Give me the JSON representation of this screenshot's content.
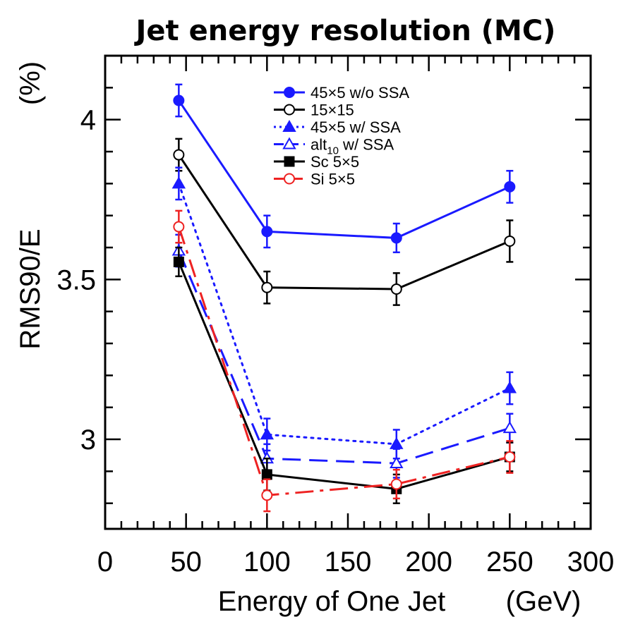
{
  "chart_data": {
    "type": "line",
    "title": "Jet energy resolution (MC)",
    "xlabel": "Energy of One Jet",
    "xunit": "(GeV)",
    "ylabel": "RMS90/E",
    "yunit": "(%)",
    "xlim": [
      0,
      300
    ],
    "ylim": [
      2.72,
      4.2
    ],
    "xticks": [
      0,
      50,
      100,
      150,
      200,
      250,
      300
    ],
    "yticks": [
      3,
      3.5,
      4
    ],
    "ytick_labels": [
      "3",
      "3.5",
      "4"
    ],
    "legend_position": "top-center",
    "grid": false,
    "series": [
      {
        "name": "45×5 w/o SSA",
        "color": "#1a1aff",
        "dash": "solid",
        "marker": "filled-circle",
        "x": [
          45.5,
          100,
          180,
          250
        ],
        "y": [
          4.06,
          3.65,
          3.63,
          3.79
        ],
        "err": [
          0.05,
          0.05,
          0.045,
          0.05
        ]
      },
      {
        "name": "15×15",
        "color": "#000000",
        "dash": "solid",
        "marker": "open-circle",
        "x": [
          45.5,
          100,
          180,
          250
        ],
        "y": [
          3.89,
          3.475,
          3.47,
          3.62
        ],
        "err": [
          0.05,
          0.05,
          0.05,
          0.065
        ]
      },
      {
        "name": "45×5 w/  SSA",
        "color": "#1a1aff",
        "dash": "dotted",
        "marker": "filled-triangle",
        "x": [
          45.5,
          100,
          180,
          250
        ],
        "y": [
          3.8,
          3.015,
          2.985,
          3.16
        ],
        "err": [
          0.05,
          0.05,
          0.045,
          0.05
        ]
      },
      {
        "name": "alt",
        "name_sub": "10",
        "name_suffix": " w/  SSA",
        "color": "#1a1aff",
        "dash": "dashed",
        "marker": "open-triangle",
        "x": [
          45.5,
          100,
          180,
          250
        ],
        "y": [
          3.59,
          2.94,
          2.925,
          3.035
        ],
        "err": [
          0.05,
          0.045,
          0.045,
          0.045
        ]
      },
      {
        "name": "Sc 5×5",
        "color": "#000000",
        "dash": "solid",
        "marker": "filled-square",
        "x": [
          45.5,
          100,
          180,
          250
        ],
        "y": [
          3.555,
          2.89,
          2.845,
          2.945
        ],
        "err": [
          0.045,
          0.05,
          0.045,
          0.045
        ]
      },
      {
        "name": "Si 5×5",
        "color": "#ee2222",
        "dash": "dashdot",
        "marker": "open-circle",
        "x": [
          45.5,
          100,
          180,
          250
        ],
        "y": [
          3.665,
          2.825,
          2.86,
          2.945
        ],
        "err": [
          0.05,
          0.05,
          0.045,
          0.05
        ]
      }
    ]
  }
}
